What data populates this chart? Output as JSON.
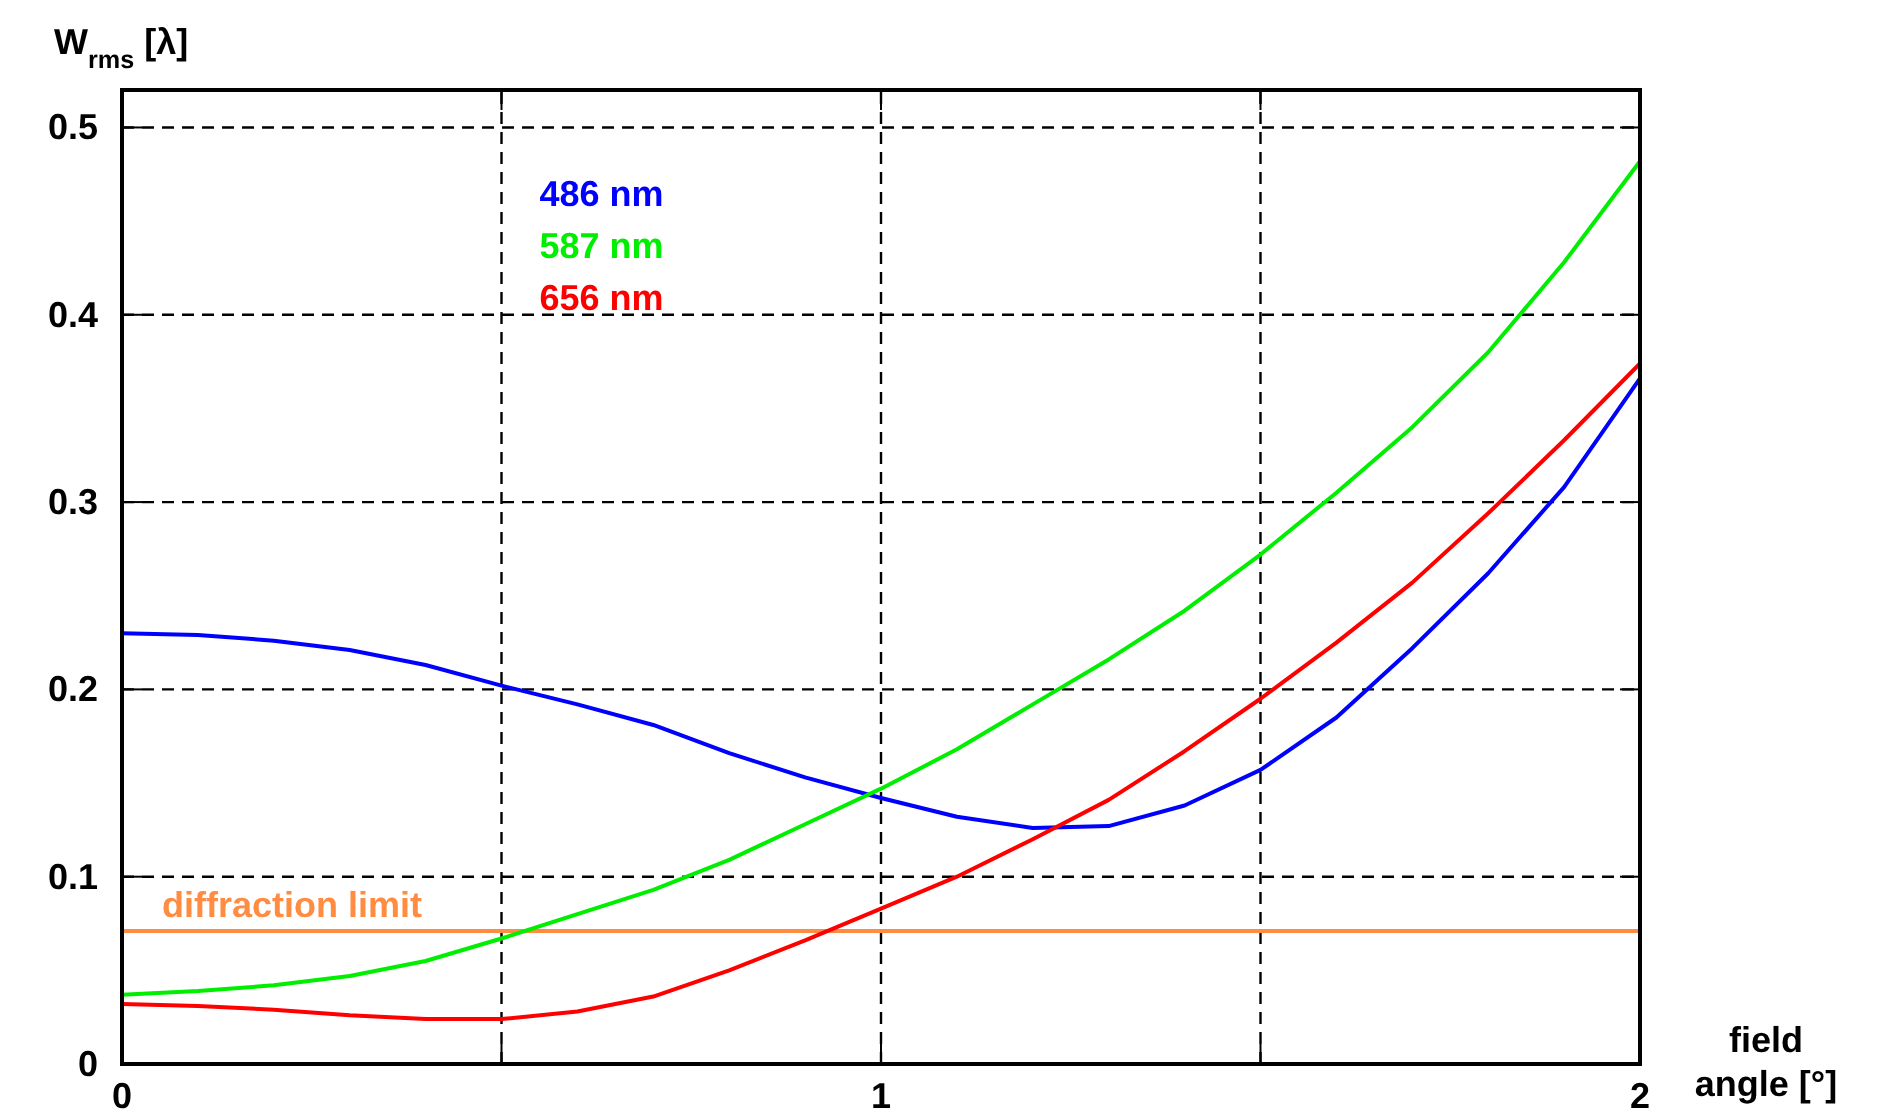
{
  "chart_data": {
    "type": "line",
    "ylabel": "W$_{rms}$ [λ]",
    "xlabel": "field angle [°]",
    "x": [
      0,
      0.1,
      0.2,
      0.3,
      0.4,
      0.5,
      0.6,
      0.7,
      0.8,
      0.9,
      1.0,
      1.1,
      1.2,
      1.3,
      1.4,
      1.5,
      1.6,
      1.7,
      1.8,
      1.9,
      2.0
    ],
    "series": [
      {
        "name": "486 nm",
        "color": "#0000ff",
        "values": [
          0.23,
          0.229,
          0.226,
          0.221,
          0.213,
          0.202,
          0.192,
          0.181,
          0.166,
          0.153,
          0.142,
          0.132,
          0.126,
          0.127,
          0.138,
          0.157,
          0.185,
          0.222,
          0.262,
          0.308,
          0.366
        ]
      },
      {
        "name": "587 nm",
        "color": "#00ee00",
        "values": [
          0.037,
          0.039,
          0.042,
          0.047,
          0.055,
          0.067,
          0.08,
          0.093,
          0.109,
          0.128,
          0.147,
          0.168,
          0.192,
          0.216,
          0.242,
          0.272,
          0.305,
          0.34,
          0.38,
          0.428,
          0.482
        ]
      },
      {
        "name": "656 nm",
        "color": "#ff0000",
        "values": [
          0.032,
          0.031,
          0.029,
          0.026,
          0.024,
          0.024,
          0.028,
          0.036,
          0.05,
          0.066,
          0.083,
          0.1,
          0.12,
          0.141,
          0.167,
          0.195,
          0.225,
          0.257,
          0.294,
          0.333,
          0.374
        ]
      }
    ],
    "xlim": [
      0,
      2
    ],
    "xticks": [
      0,
      {
        "value": 0.5,
        "label": null
      },
      1,
      {
        "value": 1.5,
        "label": null
      },
      2
    ],
    "ylim": [
      0,
      0.52
    ],
    "yticks": [
      0,
      0.1,
      0.2,
      0.3,
      0.4,
      0.5
    ],
    "ref_lines": [
      {
        "axis": "y",
        "value": 0.071,
        "label": "diffraction limit",
        "color": "#ff8c40"
      }
    ],
    "grid": true,
    "legend": "top left",
    "line_style": "solid",
    "marker": "none"
  }
}
